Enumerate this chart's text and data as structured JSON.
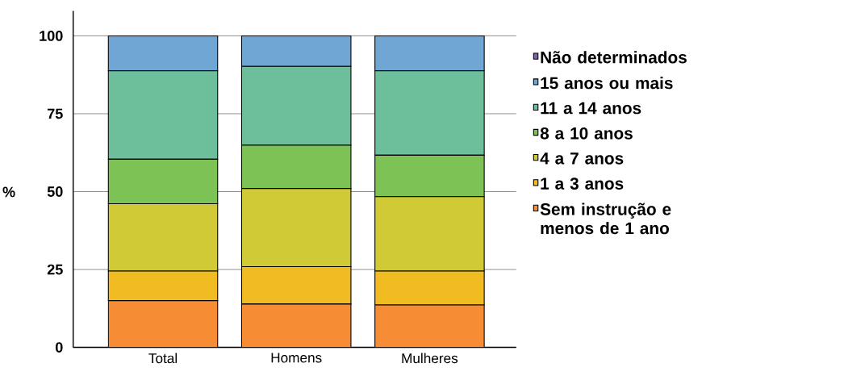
{
  "chart_data": {
    "type": "bar",
    "stacked": true,
    "ylabel": "%",
    "categories": [
      "Total",
      "Homens",
      "Mulheres"
    ],
    "series": [
      {
        "name": "Sem instrução e menos de 1 ano",
        "color": "#f68d35",
        "values": [
          15.0,
          13.9,
          13.6
        ]
      },
      {
        "name": "1 a 3 anos",
        "color": "#f0bc22",
        "values": [
          9.5,
          12.0,
          10.9
        ]
      },
      {
        "name": "4 a 7 anos",
        "color": "#cfca35",
        "values": [
          21.6,
          25.1,
          23.9
        ]
      },
      {
        "name": "8 a 10 anos",
        "color": "#7dc255",
        "values": [
          14.3,
          13.9,
          13.3
        ]
      },
      {
        "name": "11 a 14 anos",
        "color": "#6dbf9c",
        "values": [
          28.4,
          25.3,
          27.1
        ]
      },
      {
        "name": "15 anos ou mais",
        "color": "#6fa6d3",
        "values": [
          11.2,
          9.8,
          11.2
        ]
      },
      {
        "name": "Não determinados",
        "color": "#7b62ad",
        "values": [
          0,
          0,
          0
        ]
      }
    ],
    "ylim": [
      0,
      108
    ],
    "yticks": [
      0,
      25,
      50,
      75,
      100
    ],
    "grid": "y",
    "legend": "right"
  }
}
